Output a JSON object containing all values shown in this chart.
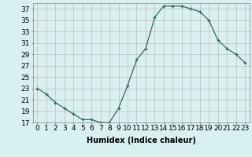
{
  "x": [
    0,
    1,
    2,
    3,
    4,
    5,
    6,
    7,
    8,
    9,
    10,
    11,
    12,
    13,
    14,
    15,
    16,
    17,
    18,
    19,
    20,
    21,
    22,
    23
  ],
  "y": [
    23,
    22,
    20.5,
    19.5,
    18.5,
    17.5,
    17.5,
    17,
    17,
    19.5,
    23.5,
    28,
    30,
    35.5,
    37.5,
    37.5,
    37.5,
    37,
    36.5,
    35,
    31.5,
    30,
    29,
    27.5
  ],
  "line_color": "#2d6b5e",
  "marker": "+",
  "marker_size": 3,
  "bg_color": "#d8f0f0",
  "grid_color": "#c8b8b8",
  "xlabel": "Humidex (Indice chaleur)",
  "xlim": [
    -0.5,
    23.5
  ],
  "ylim": [
    17,
    38
  ],
  "yticks": [
    17,
    19,
    21,
    23,
    25,
    27,
    29,
    31,
    33,
    35,
    37
  ],
  "xticks": [
    0,
    1,
    2,
    3,
    4,
    5,
    6,
    7,
    8,
    9,
    10,
    11,
    12,
    13,
    14,
    15,
    16,
    17,
    18,
    19,
    20,
    21,
    22,
    23
  ],
  "xtick_labels": [
    "0",
    "1",
    "2",
    "3",
    "4",
    "5",
    "6",
    "7",
    "8",
    "9",
    "10",
    "11",
    "12",
    "13",
    "14",
    "15",
    "16",
    "17",
    "18",
    "19",
    "20",
    "21",
    "22",
    "23"
  ],
  "xlabel_fontsize": 7,
  "tick_fontsize": 6.5
}
